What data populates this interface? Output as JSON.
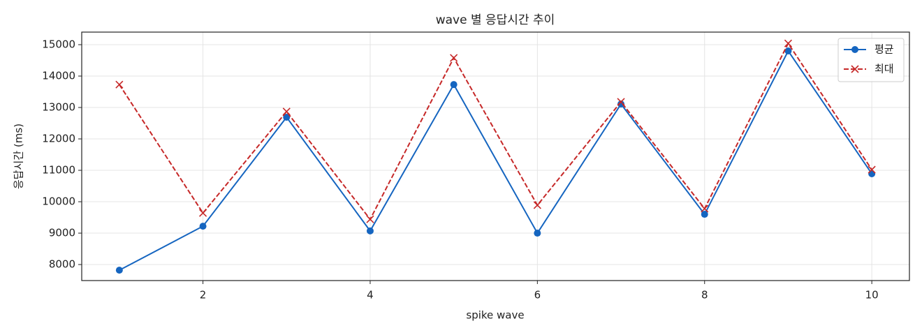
{
  "chart_data": {
    "type": "line",
    "title": "wave 별 응답시간 추이",
    "x_label": "spike wave",
    "y_label": "응답시간 (ms)",
    "x": [
      1,
      2,
      3,
      4,
      5,
      6,
      7,
      8,
      9,
      10
    ],
    "series": [
      {
        "name": "평균",
        "color": "#1565c0",
        "marker": "circle",
        "line_style": "solid",
        "values": [
          7820,
          9220,
          12690,
          9070,
          13730,
          9000,
          13110,
          9600,
          14800,
          10890
        ]
      },
      {
        "name": "최대",
        "color": "#c62828",
        "marker": "x",
        "line_style": "dashed",
        "values": [
          13730,
          9640,
          12870,
          9440,
          14580,
          9890,
          13180,
          9780,
          15040,
          11020
        ]
      }
    ],
    "xlim": [
      0.55,
      10.45
    ],
    "ylim": [
      7490,
      15400
    ],
    "xticks": [
      2,
      4,
      6,
      8,
      10
    ],
    "yticks": [
      8000,
      9000,
      10000,
      11000,
      12000,
      13000,
      14000,
      15000
    ],
    "grid": true,
    "legend_position": "upper-right"
  }
}
